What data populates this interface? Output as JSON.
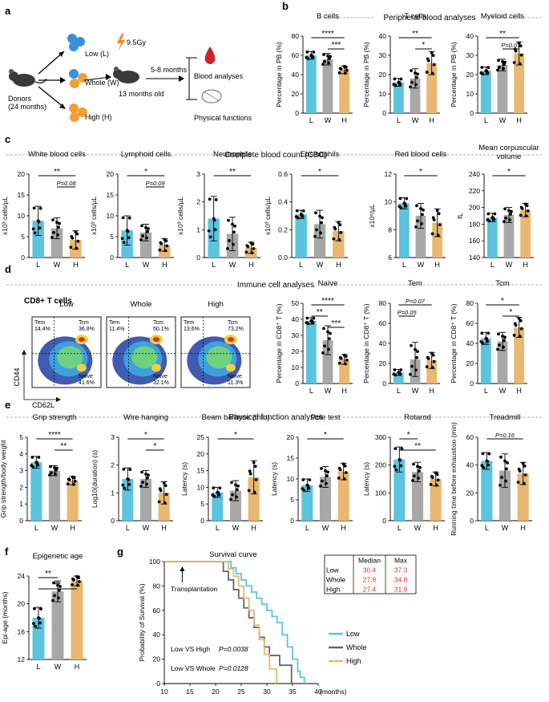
{
  "colors": {
    "low": "#5bc4de",
    "whole": "#a8a8a8",
    "high": "#e9b76f"
  },
  "panel_letters": [
    "a",
    "b",
    "c",
    "d",
    "e",
    "f",
    "g"
  ],
  "section_a": {
    "low": "Low (L)",
    "whole": "Whole (W)",
    "high": "High (H)",
    "donors": "Donors\n(24 months)",
    "dose": "9.5Gy",
    "age": "13 months old",
    "interval": "5-8 months",
    "blood": "Blood analyses",
    "physical": "Physical functions"
  },
  "section_titles": {
    "b": "Peripheral blood analyses",
    "c": "Complete blood count (CBC)",
    "d": "Immune cell analyses",
    "e": "Physical function analyses"
  },
  "flow": {
    "title": "CD8+ T cells",
    "xlabel": "CD62L",
    "ylabel": "CD44",
    "plots": [
      {
        "name": "Low",
        "tem": "Tem\n14.4%",
        "tcm": "Tcm\n36.8%",
        "naive": "Naive\n41.6%"
      },
      {
        "name": "Whole",
        "tem": "Tem\n11.4%",
        "tcm": "Tcm\n50.1%",
        "naive": "Naive\n32.1%"
      },
      {
        "name": "High",
        "tem": "Tem\n13.6%",
        "tcm": "Tcm\n73.2%",
        "naive": "Naive\n11.3%"
      }
    ]
  },
  "chart_data": [
    {
      "id": "b1",
      "type": "bar",
      "title": "B cells",
      "ylabel": "Percentage in PB (%)",
      "categories": [
        "L",
        "W",
        "H"
      ],
      "values": [
        60,
        56,
        45
      ],
      "errors": [
        4,
        6,
        4
      ],
      "ylim": [
        0,
        80
      ],
      "yticks": [
        "0",
        "20",
        "40",
        "60",
        "80"
      ],
      "brackets": [
        {
          "from": 0,
          "to": 2,
          "label": "****"
        },
        {
          "from": 1,
          "to": 2,
          "label": "***"
        }
      ]
    },
    {
      "id": "b2",
      "type": "bar",
      "title": "T cells",
      "ylabel": "Percentage in PB (%)",
      "categories": [
        "L",
        "W",
        "H"
      ],
      "values": [
        16,
        18,
        26
      ],
      "errors": [
        2,
        5,
        6
      ],
      "ylim": [
        0,
        40
      ],
      "yticks": [
        "0",
        "10",
        "20",
        "30",
        "40"
      ],
      "brackets": [
        {
          "from": 0,
          "to": 2,
          "label": "**"
        },
        {
          "from": 1,
          "to": 2,
          "label": "*"
        }
      ]
    },
    {
      "id": "b3",
      "type": "bar",
      "title": "Myeloid cells",
      "ylabel": "Percentage in PB (%)",
      "categories": [
        "L",
        "W",
        "H"
      ],
      "values": [
        22,
        25,
        31
      ],
      "errors": [
        2,
        3,
        6
      ],
      "ylim": [
        0,
        40
      ],
      "yticks": [
        "0",
        "10",
        "20",
        "30",
        "40"
      ],
      "brackets": [
        {
          "from": 0,
          "to": 2,
          "label": "**"
        },
        {
          "from": 1,
          "to": 2,
          "label": "P=0.07"
        }
      ]
    },
    {
      "id": "c1",
      "type": "bar",
      "title": "White blood cells",
      "ylabel": "x10³ cells/µL",
      "categories": [
        "L",
        "W",
        "H"
      ],
      "values": [
        8.8,
        7,
        4.2
      ],
      "errors": [
        3.5,
        2.5,
        2.2
      ],
      "ylim": [
        0,
        20
      ],
      "yticks": [
        "0",
        "5",
        "10",
        "15",
        "20"
      ],
      "brackets": [
        {
          "from": 0,
          "to": 2,
          "label": "**"
        },
        {
          "from": 1,
          "to": 2,
          "label": "P=0.08"
        }
      ]
    },
    {
      "id": "c2",
      "type": "bar",
      "title": "Lymphoid cells",
      "ylabel": "x10³ cells/µL",
      "categories": [
        "L",
        "W",
        "H"
      ],
      "values": [
        6.5,
        6,
        3
      ],
      "errors": [
        3.5,
        2,
        1.5
      ],
      "ylim": [
        0,
        20
      ],
      "yticks": [
        "0",
        "5",
        "10",
        "15",
        "20"
      ],
      "brackets": [
        {
          "from": 0,
          "to": 2,
          "label": "*"
        },
        {
          "from": 1,
          "to": 2,
          "label": "P=0.09"
        }
      ]
    },
    {
      "id": "c3",
      "type": "bar",
      "title": "Neutrophils",
      "ylabel": "x10³ cells/µL",
      "categories": [
        "L",
        "W",
        "H"
      ],
      "values": [
        1.4,
        0.85,
        0.35
      ],
      "errors": [
        0.8,
        0.6,
        0.2
      ],
      "ylim": [
        0,
        3
      ],
      "yticks": [
        "0",
        "1",
        "2",
        "3"
      ],
      "brackets": [
        {
          "from": 0,
          "to": 2,
          "label": "**"
        }
      ]
    },
    {
      "id": "c4",
      "type": "bar",
      "title": "Eosinophils",
      "ylabel": "x10³ cells/µL",
      "categories": [
        "L",
        "W",
        "H"
      ],
      "values": [
        0.31,
        0.24,
        0.19
      ],
      "errors": [
        0.03,
        0.1,
        0.07
      ],
      "ylim": [
        0,
        0.6
      ],
      "yticks": [
        "0.0",
        "0.2",
        "0.4",
        "0.6"
      ],
      "brackets": [
        {
          "from": 0,
          "to": 2,
          "label": "*"
        }
      ]
    },
    {
      "id": "c5",
      "type": "bar",
      "title": "Red blood cells",
      "ylabel": "x10⁶/µL",
      "categories": [
        "L",
        "W",
        "H"
      ],
      "values": [
        9.9,
        9,
        8.5
      ],
      "errors": [
        0.4,
        0.9,
        1
      ],
      "ylim": [
        6,
        12
      ],
      "yticks": [
        "6",
        "8",
        "10",
        "12"
      ],
      "brackets": [
        {
          "from": 0,
          "to": 2,
          "label": "*"
        }
      ]
    },
    {
      "id": "c6",
      "type": "bar",
      "title": "Mean corpuscular\nvolume",
      "ylabel": "fL",
      "categories": [
        "L",
        "W",
        "H"
      ],
      "values": [
        188,
        191,
        197
      ],
      "errors": [
        5,
        9,
        8
      ],
      "ylim": [
        140,
        240
      ],
      "yticks": [
        "140",
        "160",
        "180",
        "200",
        "220",
        "240"
      ],
      "brackets": [
        {
          "from": 0,
          "to": 2,
          "label": "*"
        }
      ]
    },
    {
      "id": "d1",
      "type": "bar",
      "title": "Naïve",
      "ylabel": "Percentage in CD8⁺ T (%)",
      "categories": [
        "L",
        "W",
        "H"
      ],
      "values": [
        39,
        27,
        15
      ],
      "errors": [
        2,
        9,
        3
      ],
      "ylim": [
        0,
        50
      ],
      "yticks": [
        "0",
        "10",
        "20",
        "30",
        "40",
        "50"
      ],
      "brackets": [
        {
          "from": 0,
          "to": 2,
          "label": "****"
        },
        {
          "from": 0,
          "to": 1,
          "label": "**"
        },
        {
          "from": 1,
          "to": 2,
          "label": "***"
        }
      ]
    },
    {
      "id": "d2",
      "type": "bar",
      "title": "Tem",
      "ylabel": "Percentage in CD8⁺ T (%)",
      "categories": [
        "L",
        "W",
        "H"
      ],
      "values": [
        11,
        24,
        23
      ],
      "errors": [
        3,
        17,
        8
      ],
      "ylim": [
        0,
        80
      ],
      "yticks": [
        "0",
        "20",
        "40",
        "60",
        "80"
      ],
      "brackets": [
        {
          "from": 0,
          "to": 2,
          "label": "P=0.07"
        },
        {
          "from": 0,
          "to": 1,
          "label": "P=0.05"
        }
      ]
    },
    {
      "id": "d3",
      "type": "bar",
      "title": "Tcm",
      "ylabel": "Percentage in CD8⁺ T (%)",
      "categories": [
        "L",
        "W",
        "H"
      ],
      "values": [
        45,
        42,
        56
      ],
      "errors": [
        6,
        9,
        10
      ],
      "ylim": [
        0,
        80
      ],
      "yticks": [
        "0",
        "20",
        "40",
        "60",
        "80"
      ],
      "brackets": [
        {
          "from": 0,
          "to": 2,
          "label": "*"
        },
        {
          "from": 1,
          "to": 2,
          "label": "*"
        }
      ]
    },
    {
      "id": "e1",
      "type": "bar",
      "title": "Grip strength",
      "ylabel": "Grip strength/body weight",
      "categories": [
        "L",
        "W",
        "H"
      ],
      "values": [
        3.5,
        3,
        2.4
      ],
      "errors": [
        0.35,
        0.3,
        0.25
      ],
      "ylim": [
        0,
        5
      ],
      "yticks": [
        "0",
        "1",
        "2",
        "3",
        "4",
        "5"
      ],
      "brackets": [
        {
          "from": 0,
          "to": 2,
          "label": "****"
        },
        {
          "from": 1,
          "to": 2,
          "label": "**"
        }
      ]
    },
    {
      "id": "e2",
      "type": "bar",
      "title": "Wire hanging",
      "ylabel": "Log10(duration) (s)",
      "categories": [
        "L",
        "W",
        "H"
      ],
      "values": [
        1.5,
        1.5,
        1
      ],
      "errors": [
        0.4,
        0.3,
        0.4
      ],
      "ylim": [
        0,
        3
      ],
      "yticks": [
        "0",
        "1",
        "2",
        "3"
      ],
      "brackets": [
        {
          "from": 0,
          "to": 2,
          "label": "*"
        },
        {
          "from": 1,
          "to": 2,
          "label": "*"
        }
      ]
    },
    {
      "id": "e3",
      "type": "bar",
      "title": "Beam balance (thin)",
      "ylabel": "Latency (s)",
      "categories": [
        "L",
        "W",
        "H"
      ],
      "values": [
        8.5,
        9,
        13
      ],
      "errors": [
        1.5,
        3,
        5
      ],
      "ylim": [
        0,
        25
      ],
      "yticks": [
        "0",
        "5",
        "10",
        "15",
        "20",
        "25"
      ],
      "brackets": [
        {
          "from": 0,
          "to": 2,
          "label": "*"
        }
      ]
    },
    {
      "id": "e4",
      "type": "bar",
      "title": "Pole test",
      "ylabel": "Latency (s)",
      "categories": [
        "L",
        "W",
        "H"
      ],
      "values": [
        8.5,
        10.5,
        11.8
      ],
      "errors": [
        1.5,
        2.5,
        2
      ],
      "ylim": [
        0,
        20
      ],
      "yticks": [
        "0",
        "5",
        "10",
        "15",
        "20"
      ],
      "brackets": [
        {
          "from": 0,
          "to": 2,
          "label": "*"
        }
      ]
    },
    {
      "id": "e5",
      "type": "bar",
      "title": "Rotarod",
      "ylabel": "Latency (s)",
      "categories": [
        "L",
        "W",
        "H"
      ],
      "values": [
        220,
        175,
        150
      ],
      "errors": [
        45,
        35,
        25
      ],
      "ylim": [
        0,
        300
      ],
      "yticks": [
        "0",
        "100",
        "200",
        "300"
      ],
      "brackets": [
        {
          "from": 0,
          "to": 1,
          "label": "*"
        },
        {
          "from": 0,
          "to": 2,
          "label": "**"
        }
      ]
    },
    {
      "id": "e6",
      "type": "bar",
      "title": "Treadmill",
      "ylabel": "Running time before exhaustion (min)",
      "categories": [
        "L",
        "W",
        "H"
      ],
      "values": [
        43,
        36,
        34
      ],
      "errors": [
        6,
        12,
        8
      ],
      "ylim": [
        0,
        60
      ],
      "yticks": [
        "0",
        "20",
        "40",
        "60"
      ],
      "brackets": [
        {
          "from": 0,
          "to": 2,
          "label": "P=0.16"
        }
      ]
    },
    {
      "id": "f1",
      "type": "bar",
      "title": "Epigenetic age",
      "ylabel": "Epi-age (months)",
      "categories": [
        "L",
        "W",
        "H"
      ],
      "values": [
        18,
        21.8,
        23.3
      ],
      "errors": [
        1.5,
        1.5,
        0.7
      ],
      "ylim": [
        12,
        24
      ],
      "yticks": [
        "12",
        "16",
        "20",
        "24"
      ],
      "brackets": [
        {
          "from": 0,
          "to": 1,
          "label": "**"
        },
        {
          "from": 0,
          "to": 2,
          "label": "**"
        }
      ]
    },
    {
      "id": "g",
      "type": "line",
      "title": "Survival curve",
      "xlabel": "(months)",
      "ylabel": "Probability of Survival (%)",
      "xlim": [
        10,
        40
      ],
      "ylim": [
        0,
        100
      ],
      "xticks": [
        "10",
        "15",
        "20",
        "25",
        "30",
        "35",
        "40"
      ],
      "yticks": [
        "0",
        "20",
        "40",
        "60",
        "80",
        "100"
      ],
      "annotation": "Transplantation",
      "stats": [
        "Low VS High",
        "P=0.0038",
        "Low VS Whole",
        "P=0.0128"
      ],
      "table": {
        "headers": [
          "",
          "Median",
          "Max"
        ],
        "rows": [
          [
            "Low",
            "30.4",
            "37.3"
          ],
          [
            "Whole",
            "27.8",
            "34.8"
          ],
          [
            "High",
            "27.4",
            "31.9"
          ]
        ]
      },
      "series": [
        {
          "name": "Low",
          "x": [
            10,
            22.5,
            23,
            24,
            25,
            26,
            27,
            28,
            29,
            30,
            31,
            32,
            33,
            34,
            35,
            36,
            36.5,
            37.3
          ],
          "y": [
            100,
            100,
            95,
            90,
            85,
            80,
            75,
            70,
            65,
            60,
            55,
            50,
            40,
            30,
            20,
            10,
            5,
            0
          ]
        },
        {
          "name": "Whole",
          "x": [
            10,
            20.5,
            21.5,
            22.5,
            23.5,
            24.5,
            25.5,
            26.5,
            27.5,
            28.5,
            29.5,
            30.5,
            32.5,
            34.8
          ],
          "y": [
            100,
            100,
            92,
            85,
            77,
            70,
            62,
            54,
            46,
            38,
            30,
            23,
            15,
            0
          ]
        },
        {
          "name": "High",
          "x": [
            10,
            21.5,
            22.5,
            23.5,
            24.5,
            25.5,
            26.5,
            27.5,
            28.5,
            29.5,
            30.5,
            31.9
          ],
          "y": [
            100,
            100,
            94,
            88,
            80,
            70,
            60,
            48,
            36,
            24,
            12,
            0
          ]
        }
      ]
    }
  ]
}
